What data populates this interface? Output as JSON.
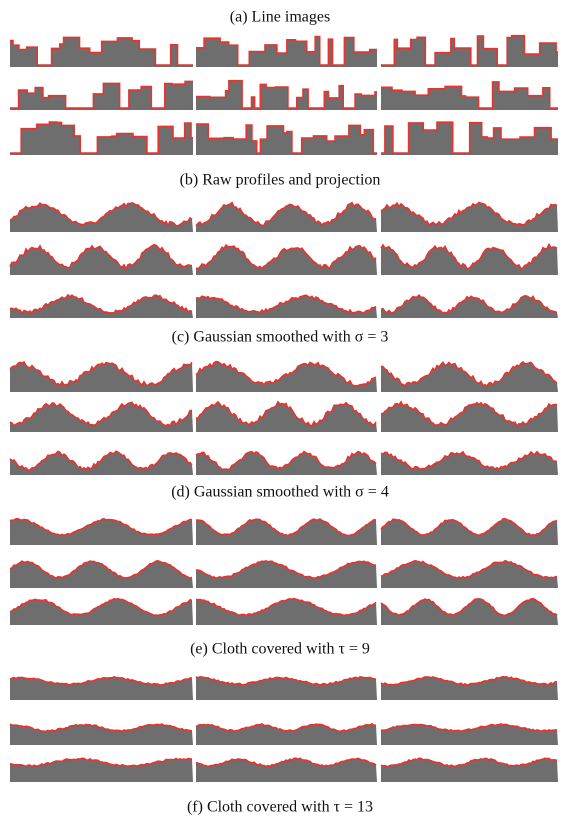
{
  "figure": {
    "panels": [
      {
        "caption": "(a) Line images"
      },
      {
        "caption": "(b) Raw profiles and projection"
      },
      {
        "caption": "(c) Gaussian smoothed with σ = 3"
      },
      {
        "caption": "(d) Gaussian smoothed with σ = 4"
      },
      {
        "caption": "(e) Cloth covered with τ = 9"
      },
      {
        "caption": "(f) Cloth covered with τ = 13"
      }
    ]
  }
}
